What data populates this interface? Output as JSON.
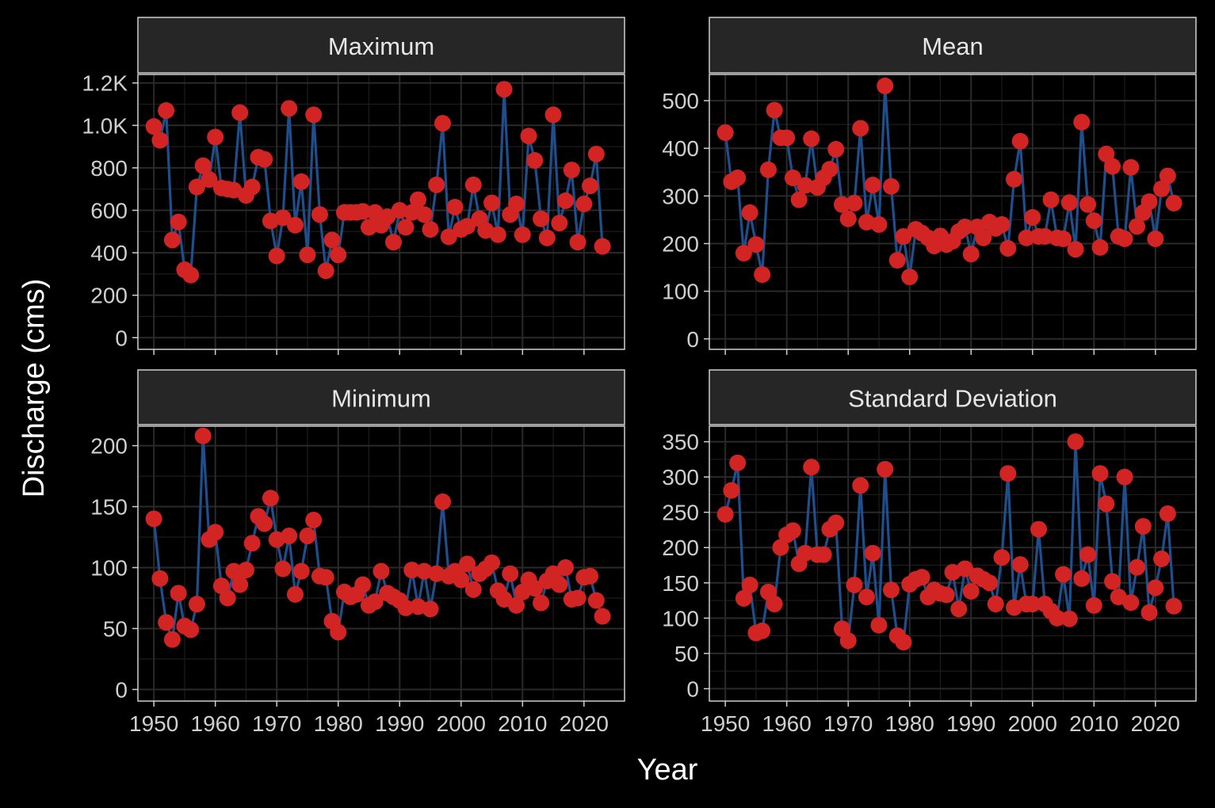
{
  "chart_data": {
    "type": "line",
    "xlabel": "Year",
    "ylabel": "Discharge (cms)",
    "colors": {
      "background": "#000000",
      "panel": "#000000",
      "grid": "#2a2a2a",
      "strip": "#262626",
      "border": "#cfcfcf",
      "line": "#1f4e8c",
      "point": "#d32424",
      "text": "#e6e6e6"
    },
    "x_ticks": [
      1950,
      1960,
      1970,
      1980,
      1990,
      2000,
      2010,
      2020
    ],
    "x_range": [
      1947.4,
      2026.6
    ],
    "grid": true,
    "panels": [
      {
        "name": "Maximum",
        "y_ticks": [
          0,
          200,
          400,
          600,
          800,
          1000,
          1200
        ],
        "y_tick_labels": [
          "0",
          "200",
          "400",
          "600",
          "800",
          "1.0K",
          "1.2K"
        ],
        "y_range": [
          -55,
          1240
        ],
        "x": [
          1950,
          1951,
          1952,
          1953,
          1954,
          1955,
          1956,
          1957,
          1958,
          1959,
          1960,
          1961,
          1962,
          1963,
          1964,
          1965,
          1966,
          1967,
          1968,
          1969,
          1970,
          1971,
          1972,
          1973,
          1974,
          1975,
          1976,
          1977,
          1978,
          1979,
          1980,
          1981,
          1982,
          1983,
          1984,
          1985,
          1986,
          1987,
          1988,
          1989,
          1990,
          1991,
          1992,
          1993,
          1994,
          1995,
          1996,
          1997,
          1998,
          1999,
          2000,
          2001,
          2002,
          2003,
          2004,
          2005,
          2006,
          2007,
          2008,
          2009,
          2010,
          2011,
          2012,
          2013,
          2014,
          2015,
          2016,
          2017,
          2018,
          2019,
          2020,
          2021,
          2022,
          2023
        ],
        "values": [
          995,
          930,
          1070,
          460,
          545,
          320,
          295,
          710,
          810,
          745,
          945,
          705,
          700,
          695,
          1060,
          670,
          710,
          850,
          840,
          550,
          385,
          565,
          1080,
          530,
          735,
          390,
          1050,
          580,
          315,
          460,
          390,
          590,
          590,
          590,
          595,
          520,
          590,
          530,
          570,
          450,
          600,
          520,
          590,
          650,
          580,
          510,
          720,
          1010,
          475,
          615,
          510,
          525,
          720,
          560,
          505,
          635,
          485,
          1170,
          580,
          630,
          485,
          950,
          835,
          560,
          470,
          1050,
          540,
          645,
          790,
          450,
          630,
          715,
          865,
          430
        ]
      },
      {
        "name": "Mean",
        "y_ticks": [
          0,
          100,
          200,
          300,
          400,
          500
        ],
        "y_tick_labels": [
          "0",
          "100",
          "200",
          "300",
          "400",
          "500"
        ],
        "y_range": [
          -22,
          555
        ],
        "x": [
          1950,
          1951,
          1952,
          1953,
          1954,
          1955,
          1956,
          1957,
          1958,
          1959,
          1960,
          1961,
          1962,
          1963,
          1964,
          1965,
          1966,
          1967,
          1968,
          1969,
          1970,
          1971,
          1972,
          1973,
          1974,
          1975,
          1976,
          1977,
          1978,
          1979,
          1980,
          1981,
          1982,
          1983,
          1984,
          1985,
          1986,
          1987,
          1988,
          1989,
          1990,
          1991,
          1992,
          1993,
          1994,
          1995,
          1996,
          1997,
          1998,
          1999,
          2000,
          2001,
          2002,
          2003,
          2004,
          2005,
          2006,
          2007,
          2008,
          2009,
          2010,
          2011,
          2012,
          2013,
          2014,
          2015,
          2016,
          2017,
          2018,
          2019,
          2020,
          2021,
          2022,
          2023
        ],
        "values": [
          433,
          330,
          338,
          180,
          265,
          198,
          135,
          355,
          480,
          422,
          422,
          338,
          292,
          322,
          420,
          318,
          338,
          356,
          398,
          282,
          252,
          285,
          442,
          245,
          323,
          240,
          531,
          320,
          165,
          215,
          130,
          230,
          222,
          212,
          195,
          216,
          198,
          205,
          225,
          235,
          178,
          235,
          212,
          245,
          232,
          240,
          190,
          335,
          415,
          212,
          255,
          215,
          215,
          292,
          212,
          210,
          286,
          188,
          455,
          282,
          248,
          192,
          388,
          362,
          215,
          210,
          360,
          236,
          265,
          288,
          210,
          315,
          342,
          285
        ]
      },
      {
        "name": "Minimum",
        "y_ticks": [
          0,
          50,
          100,
          150,
          200
        ],
        "y_tick_labels": [
          "0",
          "50",
          "100",
          "150",
          "200"
        ],
        "y_range": [
          -9.5,
          216
        ],
        "x": [
          1950,
          1951,
          1952,
          1953,
          1954,
          1955,
          1956,
          1957,
          1958,
          1959,
          1960,
          1961,
          1962,
          1963,
          1964,
          1965,
          1966,
          1967,
          1968,
          1969,
          1970,
          1971,
          1972,
          1973,
          1974,
          1975,
          1976,
          1977,
          1978,
          1979,
          1980,
          1981,
          1982,
          1983,
          1984,
          1985,
          1986,
          1987,
          1988,
          1989,
          1990,
          1991,
          1992,
          1993,
          1994,
          1995,
          1996,
          1997,
          1998,
          1999,
          2000,
          2001,
          2002,
          2003,
          2004,
          2005,
          2006,
          2007,
          2008,
          2009,
          2010,
          2011,
          2012,
          2013,
          2014,
          2015,
          2016,
          2017,
          2018,
          2019,
          2020,
          2021,
          2022,
          2023
        ],
        "values": [
          140,
          91,
          55,
          41,
          79,
          52,
          49,
          70,
          208,
          123,
          129,
          85,
          75,
          97,
          86,
          98,
          120,
          142,
          136,
          157,
          123,
          99,
          126,
          78,
          97,
          126,
          139,
          93,
          92,
          56,
          47,
          80,
          76,
          78,
          86,
          69,
          72,
          97,
          79,
          76,
          73,
          67,
          98,
          68,
          97,
          66,
          95,
          154,
          93,
          97,
          90,
          103,
          82,
          95,
          99,
          104,
          81,
          74,
          95,
          69,
          80,
          90,
          83,
          71,
          89,
          95,
          86,
          100,
          74,
          75,
          92,
          93,
          73,
          60
        ]
      },
      {
        "name": "Standard Deviation",
        "y_ticks": [
          0,
          50,
          100,
          150,
          200,
          250,
          300,
          350
        ],
        "y_tick_labels": [
          "0",
          "50",
          "100",
          "150",
          "200",
          "250",
          "300",
          "350"
        ],
        "y_range": [
          -17.5,
          372
        ],
        "x": [
          1950,
          1951,
          1952,
          1953,
          1954,
          1955,
          1956,
          1957,
          1958,
          1959,
          1960,
          1961,
          1962,
          1963,
          1964,
          1965,
          1966,
          1967,
          1968,
          1969,
          1970,
          1971,
          1972,
          1973,
          1974,
          1975,
          1976,
          1977,
          1978,
          1979,
          1980,
          1981,
          1982,
          1983,
          1984,
          1985,
          1986,
          1987,
          1988,
          1989,
          1990,
          1991,
          1992,
          1993,
          1994,
          1995,
          1996,
          1997,
          1998,
          1999,
          2000,
          2001,
          2002,
          2003,
          2004,
          2005,
          2006,
          2007,
          2008,
          2009,
          2010,
          2011,
          2012,
          2013,
          2014,
          2015,
          2016,
          2017,
          2018,
          2019,
          2020,
          2021,
          2022,
          2023
        ],
        "values": [
          247,
          281,
          320,
          128,
          147,
          79,
          82,
          137,
          120,
          200,
          218,
          224,
          177,
          192,
          314,
          190,
          190,
          226,
          235,
          85,
          68,
          147,
          288,
          130,
          192,
          90,
          311,
          140,
          75,
          66,
          148,
          155,
          158,
          130,
          140,
          135,
          133,
          165,
          113,
          170,
          138,
          160,
          155,
          150,
          120,
          186,
          305,
          115,
          176,
          120,
          120,
          226,
          120,
          110,
          100,
          162,
          99,
          350,
          156,
          190,
          118,
          305,
          262,
          152,
          130,
          300,
          122,
          172,
          230,
          108,
          143,
          184,
          248,
          117
        ]
      }
    ]
  }
}
